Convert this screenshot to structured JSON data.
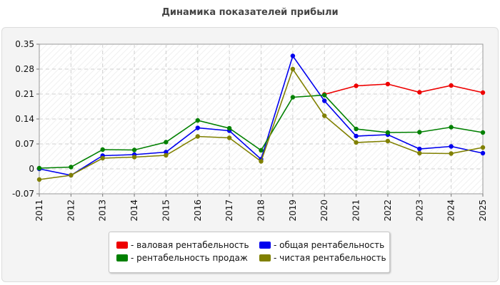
{
  "chart_data": {
    "type": "line",
    "title": "Динамика показателей прибыли",
    "xlabel": "",
    "ylabel": "",
    "categories": [
      "2011",
      "2012",
      "2013",
      "2014",
      "2015",
      "2016",
      "2017",
      "2018",
      "2019",
      "2020",
      "2021",
      "2022",
      "2023",
      "2024",
      "2025"
    ],
    "ylim": [
      -0.07,
      0.35
    ],
    "yticks": [
      -0.07,
      0,
      0.07,
      0.14,
      0.21,
      0.28,
      0.35
    ],
    "ytick_labels": [
      "-0.07",
      "0",
      "0.07",
      "0.14",
      "0.21",
      "0.28",
      "0.35"
    ],
    "grid": true,
    "legend_position": "bottom",
    "series": [
      {
        "name": "- валовая рентабельность",
        "color": "#ee0000",
        "values": [
          null,
          null,
          null,
          null,
          null,
          null,
          null,
          null,
          null,
          0.209,
          0.233,
          0.238,
          0.215,
          0.234,
          0.214
        ]
      },
      {
        "name": "- общая рентабельность",
        "color": "#0000ee",
        "values": [
          0.0,
          -0.018,
          0.037,
          0.04,
          0.047,
          0.115,
          0.107,
          0.027,
          0.317,
          0.191,
          0.092,
          0.096,
          0.056,
          0.063,
          0.044
        ]
      },
      {
        "name": "- рентабельность продаж",
        "color": "#008000",
        "values": [
          0.002,
          0.005,
          0.054,
          0.053,
          0.075,
          0.136,
          0.114,
          0.052,
          0.201,
          0.207,
          0.112,
          0.102,
          0.103,
          0.117,
          0.102
        ]
      },
      {
        "name": "- чистая рентабельность",
        "color": "#808000",
        "values": [
          -0.03,
          -0.018,
          0.03,
          0.033,
          0.038,
          0.091,
          0.087,
          0.021,
          0.28,
          0.149,
          0.074,
          0.078,
          0.044,
          0.043,
          0.06
        ]
      }
    ]
  }
}
